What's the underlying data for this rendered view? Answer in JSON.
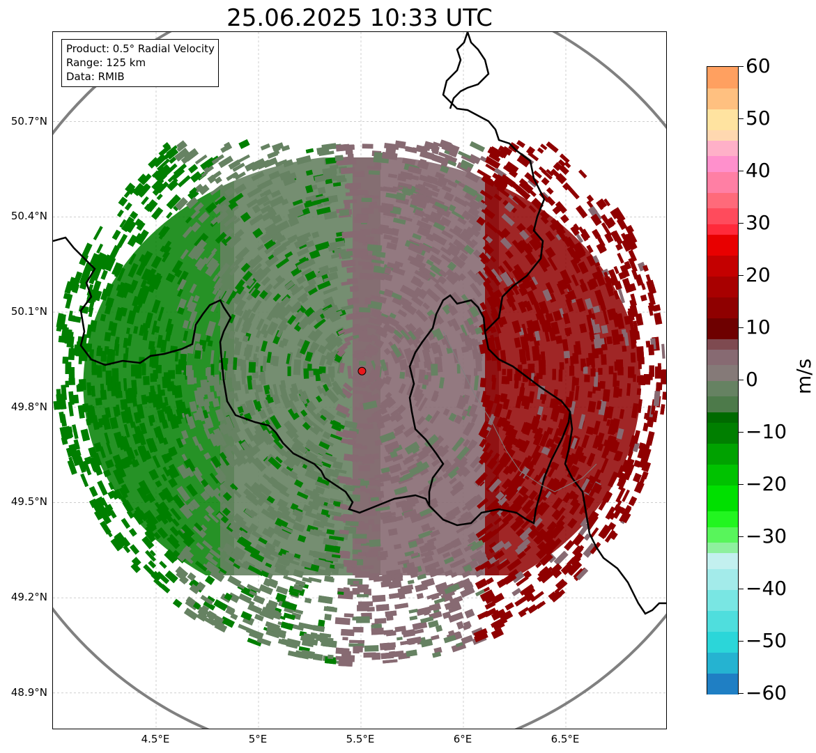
{
  "title": "25.06.2025 10:33 UTC",
  "info": {
    "product": "Product: 0.5° Radial Velocity",
    "range": "Range: 125 km",
    "data": "Data: RMIB"
  },
  "map": {
    "lon_range": [
      4.0,
      7.0
    ],
    "lat_range": [
      48.8,
      50.98
    ],
    "lat_ticks": [
      {
        "value": 50.7,
        "label": "50.7°N"
      },
      {
        "value": 50.4,
        "label": "50.4°N"
      },
      {
        "value": 50.1,
        "label": "50.1°N"
      },
      {
        "value": 49.8,
        "label": "49.8°N"
      },
      {
        "value": 49.5,
        "label": "49.5°N"
      },
      {
        "value": 49.2,
        "label": "49.2°N"
      },
      {
        "value": 48.9,
        "label": "48.9°N"
      }
    ],
    "lon_ticks": [
      {
        "value": 4.5,
        "label": "4.5°E"
      },
      {
        "value": 5.0,
        "label": "5°E"
      },
      {
        "value": 5.5,
        "label": "5.5°E"
      },
      {
        "value": 6.0,
        "label": "6°E"
      },
      {
        "value": 6.5,
        "label": "6.5°E"
      }
    ],
    "radar_site": {
      "lon": 5.505,
      "lat": 49.914
    },
    "range_km": 125,
    "colors": {
      "range_ring": "#808080",
      "borders": "#000000",
      "radar_marker": "#e8191c",
      "gridlines": "#b0b0b0"
    }
  },
  "colorbar": {
    "unit": "m/s",
    "min": -60,
    "max": 60,
    "ticks": [
      {
        "value": 60,
        "label": "60"
      },
      {
        "value": 50,
        "label": "50"
      },
      {
        "value": 40,
        "label": "40"
      },
      {
        "value": 30,
        "label": "30"
      },
      {
        "value": 20,
        "label": "20"
      },
      {
        "value": 10,
        "label": "10"
      },
      {
        "value": 0,
        "label": "0"
      },
      {
        "value": -10,
        "label": "−10"
      },
      {
        "value": -20,
        "label": "−20"
      },
      {
        "value": -30,
        "label": "−30"
      },
      {
        "value": -40,
        "label": "−40"
      },
      {
        "value": -50,
        "label": "−50"
      },
      {
        "value": -60,
        "label": "−60"
      }
    ],
    "stops": [
      {
        "from": -60,
        "to": -56,
        "color": "#1f7fc4"
      },
      {
        "from": -56,
        "to": -52,
        "color": "#25b3d1"
      },
      {
        "from": -52,
        "to": -48,
        "color": "#2bd6d9"
      },
      {
        "from": -48,
        "to": -44,
        "color": "#4fdedd"
      },
      {
        "from": -44,
        "to": -40,
        "color": "#79e6e3"
      },
      {
        "from": -40,
        "to": -36,
        "color": "#a3ebea"
      },
      {
        "from": -36,
        "to": -33,
        "color": "#c3f0ef"
      },
      {
        "from": -33,
        "to": -31,
        "color": "#8ef09e"
      },
      {
        "from": -31,
        "to": -28,
        "color": "#58f55b"
      },
      {
        "from": -28,
        "to": -25,
        "color": "#22f520"
      },
      {
        "from": -25,
        "to": -20,
        "color": "#00e000"
      },
      {
        "from": -20,
        "to": -16,
        "color": "#00c200"
      },
      {
        "from": -16,
        "to": -12,
        "color": "#00a200"
      },
      {
        "from": -12,
        "to": -8,
        "color": "#007f00"
      },
      {
        "from": -8,
        "to": -6,
        "color": "#006a00"
      },
      {
        "from": -6,
        "to": -3,
        "color": "#4d7a4a"
      },
      {
        "from": -3,
        "to": 0,
        "color": "#668262"
      },
      {
        "from": 0,
        "to": 3,
        "color": "#857a78"
      },
      {
        "from": 3,
        "to": 6,
        "color": "#876a72"
      },
      {
        "from": 6,
        "to": 8,
        "color": "#7e4a50"
      },
      {
        "from": 8,
        "to": 12,
        "color": "#6e0000"
      },
      {
        "from": 12,
        "to": 16,
        "color": "#8f0000"
      },
      {
        "from": 16,
        "to": 20,
        "color": "#a80000"
      },
      {
        "from": 20,
        "to": 24,
        "color": "#c40000"
      },
      {
        "from": 24,
        "to": 28,
        "color": "#e80000"
      },
      {
        "from": 28,
        "to": 30,
        "color": "#ff2a3a"
      },
      {
        "from": 30,
        "to": 33,
        "color": "#ff4b5c"
      },
      {
        "from": 33,
        "to": 36,
        "color": "#ff6a7a"
      },
      {
        "from": 36,
        "to": 40,
        "color": "#ff7fa4"
      },
      {
        "from": 40,
        "to": 43,
        "color": "#ff90cc"
      },
      {
        "from": 43,
        "to": 46,
        "color": "#ffb0c8"
      },
      {
        "from": 46,
        "to": 48,
        "color": "#ffd8b0"
      },
      {
        "from": 48,
        "to": 52,
        "color": "#ffe3a0"
      },
      {
        "from": 52,
        "to": 56,
        "color": "#ffc080"
      },
      {
        "from": 56,
        "to": 60,
        "color": "#ffa060"
      }
    ]
  },
  "velocity_field": {
    "description_free": true,
    "sectors": [
      {
        "color": "#007f00"
      },
      {
        "color": "#668262"
      },
      {
        "color": "#876a72"
      },
      {
        "color": "#8f0000"
      }
    ]
  }
}
